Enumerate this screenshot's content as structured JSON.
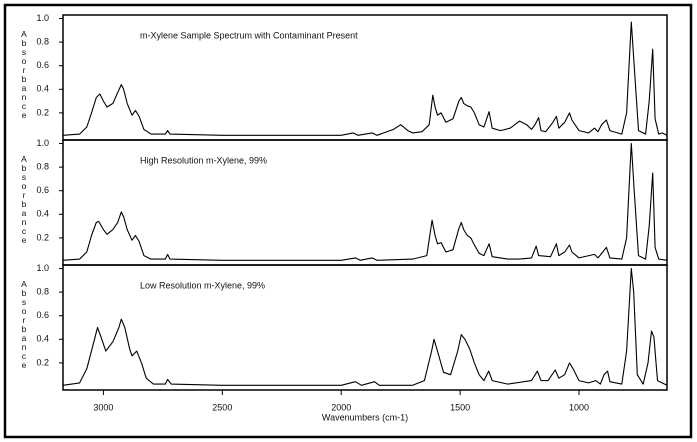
{
  "chart_data": [
    {
      "type": "line",
      "title": "m-Xylene Sample Spectrum with Contaminant Present",
      "ylabel": "Absorbance",
      "color": "#000000",
      "x": [
        3170,
        3100,
        3070,
        3050,
        3030,
        3015,
        3000,
        2985,
        2960,
        2945,
        2925,
        2915,
        2900,
        2880,
        2865,
        2850,
        2830,
        2800,
        2740,
        2730,
        2720,
        2500,
        2000,
        1950,
        1930,
        1870,
        1850,
        1780,
        1750,
        1720,
        1700,
        1660,
        1630,
        1615,
        1605,
        1595,
        1580,
        1560,
        1530,
        1505,
        1495,
        1485,
        1470,
        1455,
        1440,
        1420,
        1400,
        1378,
        1365,
        1330,
        1290,
        1250,
        1220,
        1200,
        1185,
        1170,
        1160,
        1140,
        1110,
        1095,
        1085,
        1060,
        1040,
        1030,
        1000,
        960,
        935,
        920,
        905,
        885,
        870,
        820,
        800,
        780,
        768,
        750,
        720,
        705,
        690,
        680,
        665,
        650,
        640,
        630
      ],
      "values": [
        0.01,
        0.02,
        0.08,
        0.2,
        0.33,
        0.36,
        0.3,
        0.25,
        0.28,
        0.35,
        0.44,
        0.4,
        0.28,
        0.18,
        0.22,
        0.17,
        0.06,
        0.02,
        0.02,
        0.05,
        0.02,
        0.01,
        0.01,
        0.03,
        0.01,
        0.03,
        0.01,
        0.06,
        0.1,
        0.05,
        0.03,
        0.04,
        0.1,
        0.35,
        0.25,
        0.18,
        0.2,
        0.12,
        0.15,
        0.3,
        0.33,
        0.28,
        0.26,
        0.25,
        0.2,
        0.1,
        0.08,
        0.21,
        0.07,
        0.05,
        0.07,
        0.13,
        0.1,
        0.06,
        0.1,
        0.16,
        0.05,
        0.04,
        0.12,
        0.17,
        0.07,
        0.12,
        0.2,
        0.14,
        0.05,
        0.03,
        0.07,
        0.04,
        0.1,
        0.14,
        0.05,
        0.02,
        0.2,
        0.97,
        0.6,
        0.05,
        0.02,
        0.3,
        0.74,
        0.15,
        0.02,
        0.03,
        0.02,
        0.01
      ],
      "xlim": [
        3170,
        630
      ],
      "ylim": [
        -0.03,
        1.03
      ],
      "yticks": [
        0.2,
        0.4,
        0.6,
        0.8,
        {
          "value": 1,
          "label": "1.0"
        }
      ]
    },
    {
      "type": "line",
      "title": "High Resolution m-Xylene, 99%",
      "ylabel": "Absorbance",
      "color": "#000000",
      "x": [
        3170,
        3100,
        3070,
        3050,
        3030,
        3020,
        3000,
        2985,
        2960,
        2940,
        2925,
        2915,
        2900,
        2880,
        2865,
        2850,
        2830,
        2800,
        2740,
        2730,
        2720,
        2500,
        2000,
        1940,
        1920,
        1870,
        1850,
        1700,
        1640,
        1618,
        1605,
        1595,
        1580,
        1560,
        1530,
        1505,
        1495,
        1485,
        1470,
        1455,
        1440,
        1420,
        1400,
        1378,
        1365,
        1300,
        1250,
        1200,
        1180,
        1170,
        1120,
        1095,
        1085,
        1060,
        1040,
        1030,
        1000,
        935,
        920,
        900,
        885,
        870,
        820,
        800,
        780,
        768,
        750,
        720,
        705,
        690,
        680,
        665,
        630
      ],
      "values": [
        0.01,
        0.02,
        0.08,
        0.22,
        0.33,
        0.34,
        0.27,
        0.23,
        0.27,
        0.33,
        0.42,
        0.38,
        0.27,
        0.18,
        0.22,
        0.17,
        0.05,
        0.02,
        0.02,
        0.06,
        0.02,
        0.01,
        0.01,
        0.03,
        0.01,
        0.03,
        0.01,
        0.02,
        0.05,
        0.35,
        0.22,
        0.15,
        0.16,
        0.08,
        0.1,
        0.28,
        0.33,
        0.27,
        0.22,
        0.2,
        0.14,
        0.07,
        0.05,
        0.15,
        0.04,
        0.02,
        0.02,
        0.03,
        0.13,
        0.05,
        0.04,
        0.15,
        0.05,
        0.08,
        0.14,
        0.08,
        0.03,
        0.06,
        0.03,
        0.08,
        0.12,
        0.03,
        0.02,
        0.2,
        1.0,
        0.6,
        0.05,
        0.02,
        0.3,
        0.75,
        0.12,
        0.02,
        0.01
      ],
      "xlim": [
        3170,
        630
      ],
      "ylim": [
        -0.03,
        1.03
      ],
      "yticks": [
        0.2,
        0.4,
        0.6,
        0.8,
        {
          "value": 1,
          "label": "1.0"
        }
      ]
    },
    {
      "type": "line",
      "title": "Low Resolution m-Xylene, 99%",
      "ylabel": "Absorbance",
      "xlabel": "Wavenumbers (cm-1)",
      "color": "#000000",
      "x": [
        3170,
        3100,
        3070,
        3040,
        3025,
        3010,
        2990,
        2960,
        2935,
        2925,
        2910,
        2890,
        2880,
        2860,
        2840,
        2820,
        2790,
        2740,
        2730,
        2715,
        2500,
        2000,
        1940,
        1915,
        1860,
        1840,
        1700,
        1650,
        1620,
        1610,
        1595,
        1570,
        1540,
        1510,
        1495,
        1480,
        1460,
        1440,
        1420,
        1400,
        1380,
        1365,
        1300,
        1200,
        1175,
        1160,
        1130,
        1100,
        1085,
        1060,
        1040,
        1025,
        1000,
        960,
        930,
        910,
        895,
        880,
        870,
        820,
        800,
        780,
        770,
        755,
        730,
        710,
        695,
        685,
        670,
        630
      ],
      "values": [
        0.01,
        0.03,
        0.15,
        0.38,
        0.5,
        0.42,
        0.3,
        0.38,
        0.5,
        0.57,
        0.5,
        0.32,
        0.26,
        0.3,
        0.2,
        0.07,
        0.02,
        0.02,
        0.06,
        0.02,
        0.01,
        0.01,
        0.04,
        0.01,
        0.04,
        0.01,
        0.01,
        0.05,
        0.3,
        0.4,
        0.3,
        0.12,
        0.1,
        0.3,
        0.44,
        0.4,
        0.32,
        0.2,
        0.1,
        0.05,
        0.13,
        0.05,
        0.02,
        0.05,
        0.13,
        0.05,
        0.05,
        0.14,
        0.07,
        0.1,
        0.2,
        0.15,
        0.05,
        0.03,
        0.05,
        0.02,
        0.1,
        0.13,
        0.04,
        0.02,
        0.3,
        1.0,
        0.8,
        0.1,
        0.02,
        0.2,
        0.47,
        0.42,
        0.05,
        0.01
      ],
      "xlim": [
        3170,
        630
      ],
      "ylim": [
        -0.03,
        1.03
      ],
      "yticks": [
        0.2,
        0.4,
        0.6,
        0.8,
        {
          "value": 1,
          "label": "1.0"
        }
      ],
      "xticks": [
        3000,
        2500,
        2000,
        1500,
        1000
      ]
    }
  ]
}
